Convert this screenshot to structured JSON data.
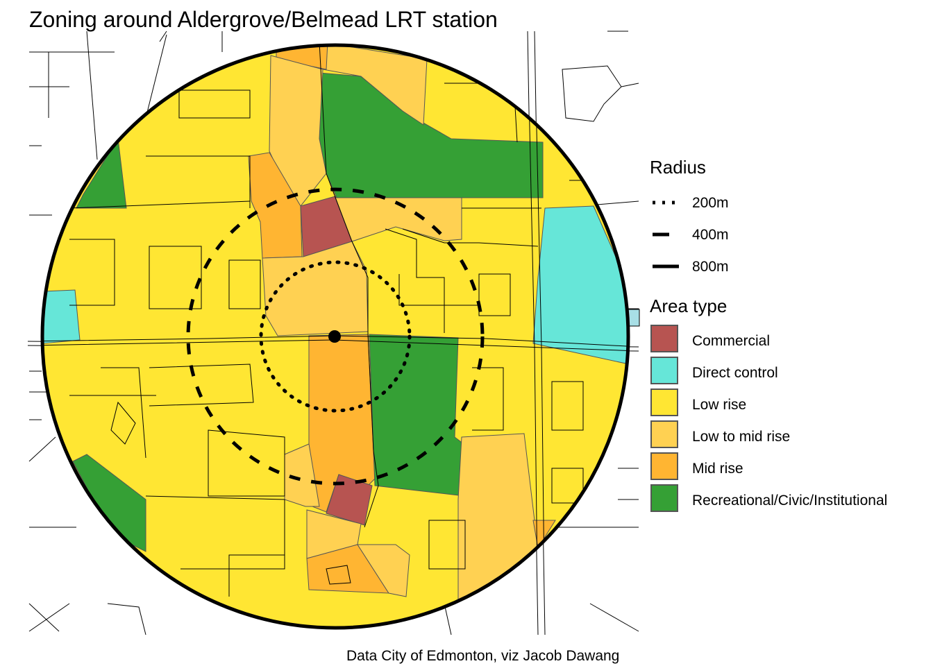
{
  "title": "Zoning around Aldergrove/Belmead LRT station",
  "caption": "Data City of Edmonton, viz Jacob Dawang",
  "legend": {
    "radius": {
      "title": "Radius",
      "items": [
        {
          "label": "200m",
          "line": "dotted"
        },
        {
          "label": "400m",
          "line": "dashed"
        },
        {
          "label": "800m",
          "line": "solid"
        }
      ]
    },
    "area_type": {
      "title": "Area type",
      "items": [
        {
          "label": "Commercial",
          "color": "#b75451"
        },
        {
          "label": "Direct control",
          "color": "#66e6d8"
        },
        {
          "label": "Low rise",
          "color": "#ffe633"
        },
        {
          "label": "Low to mid rise",
          "color": "#ffd152"
        },
        {
          "label": "Mid rise",
          "color": "#ffb532"
        },
        {
          "label": "Recreational/Civic/Institutional",
          "color": "#35a035"
        }
      ]
    }
  },
  "map": {
    "station_marker": "station-point",
    "radii_m": [
      200,
      400,
      800
    ]
  }
}
